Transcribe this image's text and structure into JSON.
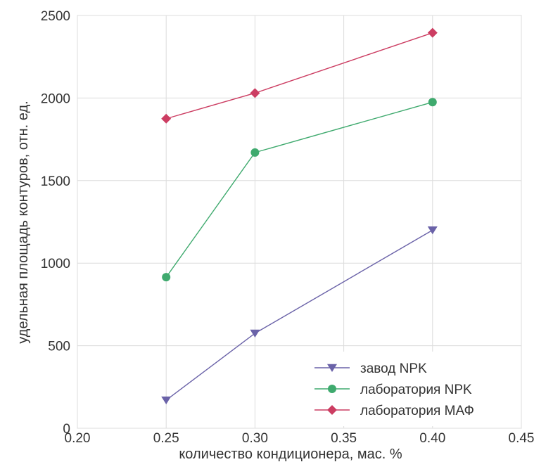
{
  "chart_data": {
    "type": "line",
    "xlabel": "количество кондиционера, мас. %",
    "ylabel": "удельная площадь контуров, отн. ед.",
    "xlim": [
      0.2,
      0.45
    ],
    "ylim": [
      0,
      2500
    ],
    "xticks": [
      "0.20",
      "0.25",
      "0.30",
      "0.35",
      "0.40",
      "0.45"
    ],
    "yticks": [
      "0",
      "500",
      "1000",
      "1500",
      "2000",
      "2500"
    ],
    "grid": true,
    "legend_position": "bottom-right",
    "series": [
      {
        "name": "завод NPK",
        "color": "#6a62a8",
        "marker": "triangle-down",
        "x": [
          0.25,
          0.3,
          0.4
        ],
        "y": [
          170,
          575,
          1200
        ]
      },
      {
        "name": "лаборатория NPK",
        "color": "#3faa6e",
        "marker": "circle",
        "x": [
          0.25,
          0.3,
          0.4
        ],
        "y": [
          915,
          1670,
          1975
        ]
      },
      {
        "name": "лаборатория МАФ",
        "color": "#cc3d62",
        "marker": "diamond",
        "x": [
          0.25,
          0.3,
          0.4
        ],
        "y": [
          1875,
          2030,
          2395
        ]
      }
    ]
  }
}
